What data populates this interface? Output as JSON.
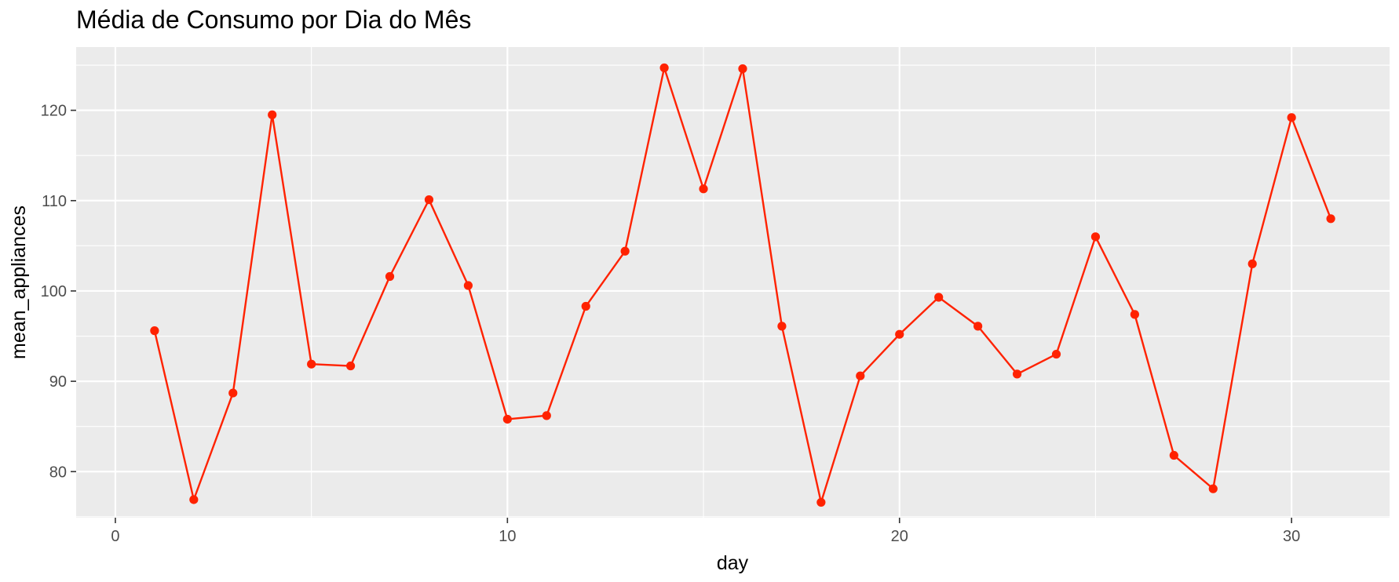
{
  "chart_data": {
    "type": "line",
    "title": "Média de Consumo por Dia do Mês",
    "xlabel": "day",
    "ylabel": "mean_appliances",
    "xlim": [
      -1,
      32.5
    ],
    "ylim": [
      74.9,
      127
    ],
    "x_ticks": [
      0,
      10,
      20,
      30
    ],
    "y_ticks": [
      80,
      90,
      100,
      110,
      120
    ],
    "x_tick_labels": [
      "0",
      "10",
      "20",
      "30"
    ],
    "y_tick_labels": [
      "80",
      "90",
      "100",
      "110",
      "120"
    ],
    "grid": true,
    "legend": "none",
    "series": [
      {
        "color": "#ff2200",
        "x": [
          1,
          2,
          3,
          4,
          5,
          6,
          7,
          8,
          9,
          10,
          11,
          12,
          13,
          14,
          15,
          16,
          17,
          18,
          19,
          20,
          21,
          22,
          23,
          24,
          25,
          26,
          27,
          28,
          29,
          30,
          31
        ],
        "y": [
          95.6,
          76.9,
          88.7,
          119.5,
          91.9,
          91.7,
          101.6,
          110.1,
          100.6,
          85.8,
          86.2,
          98.3,
          104.4,
          124.7,
          111.3,
          124.6,
          96.1,
          76.6,
          90.6,
          95.2,
          99.3,
          96.1,
          90.8,
          93.0,
          106.0,
          97.4,
          81.8,
          78.1,
          103.0,
          119.2,
          108.0
        ]
      }
    ]
  }
}
